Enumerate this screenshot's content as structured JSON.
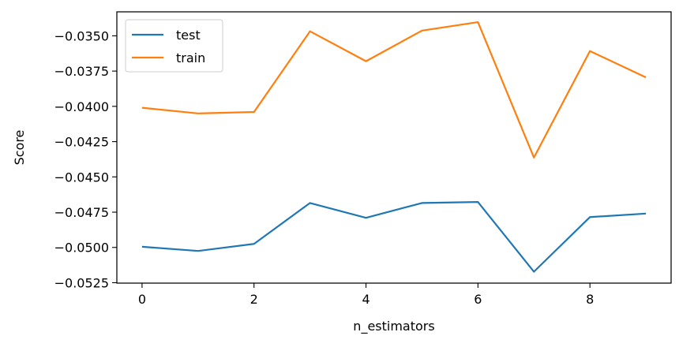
{
  "chart_data": {
    "type": "line",
    "x": [
      0,
      1,
      2,
      3,
      4,
      5,
      6,
      7,
      8,
      9
    ],
    "series": [
      {
        "name": "test",
        "color": "#1f77b4",
        "values": [
          -0.04995,
          -0.05025,
          -0.04975,
          -0.04685,
          -0.0479,
          -0.04685,
          -0.04678,
          -0.05172,
          -0.04785,
          -0.0476
        ]
      },
      {
        "name": "train",
        "color": "#ff7f0e",
        "values": [
          -0.0401,
          -0.0405,
          -0.0404,
          -0.03468,
          -0.0368,
          -0.03463,
          -0.03403,
          -0.04363,
          -0.03608,
          -0.03795
        ]
      }
    ],
    "xlabel": "n_estimators",
    "ylabel": "Score",
    "xlim": [
      -0.45,
      9.45
    ],
    "ylim": [
      -0.05253,
      -0.0333
    ],
    "xticks": [
      0,
      2,
      4,
      6,
      8
    ],
    "xtick_labels": [
      "0",
      "2",
      "4",
      "6",
      "8"
    ],
    "yticks": [
      -0.035,
      -0.0375,
      -0.04,
      -0.0425,
      -0.045,
      -0.0475,
      -0.05,
      -0.0525
    ],
    "ytick_labels": [
      "−0.0350",
      "−0.0375",
      "−0.0400",
      "−0.0425",
      "−0.0450",
      "−0.0475",
      "−0.0500",
      "−0.0525"
    ],
    "legend_position": "upper left",
    "grid": false
  }
}
